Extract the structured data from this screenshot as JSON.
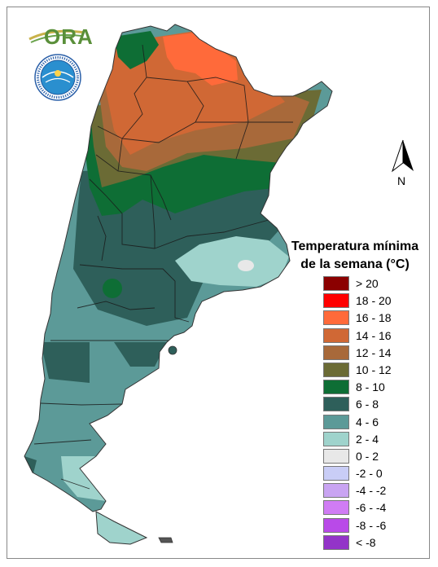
{
  "logo": {
    "text": "ORA"
  },
  "north_arrow": {
    "label": "N"
  },
  "legend": {
    "title_line1": "Temperatura mínima",
    "title_line2": "de la semana (°C)",
    "items": [
      {
        "label": "> 20",
        "color": "#8b0000"
      },
      {
        "label": "18 - 20",
        "color": "#ff0000"
      },
      {
        "label": "16 - 18",
        "color": "#ff6a3a"
      },
      {
        "label": "14 - 16",
        "color": "#d06835"
      },
      {
        "label": "12 - 14",
        "color": "#a8693a"
      },
      {
        "label": "10 - 12",
        "color": "#6b6b35"
      },
      {
        "label": "8 - 10",
        "color": "#0e6e35"
      },
      {
        "label": "6 - 8",
        "color": "#2e5f5a"
      },
      {
        "label": "4 - 6",
        "color": "#5c9a98"
      },
      {
        "label": "2 - 4",
        "color": "#9fd3cc"
      },
      {
        "label": "0 - 2",
        "color": "#e8e8e8"
      },
      {
        "label": "-2 - 0",
        "color": "#c9cdf6"
      },
      {
        "label": "-4 - -2",
        "color": "#c9a4f2"
      },
      {
        "label": "-6 - -4",
        "color": "#d07cf4"
      },
      {
        "label": "-8 - -6",
        "color": "#b94ae8"
      },
      {
        "label": "< -8",
        "color": "#9334c8"
      }
    ]
  }
}
